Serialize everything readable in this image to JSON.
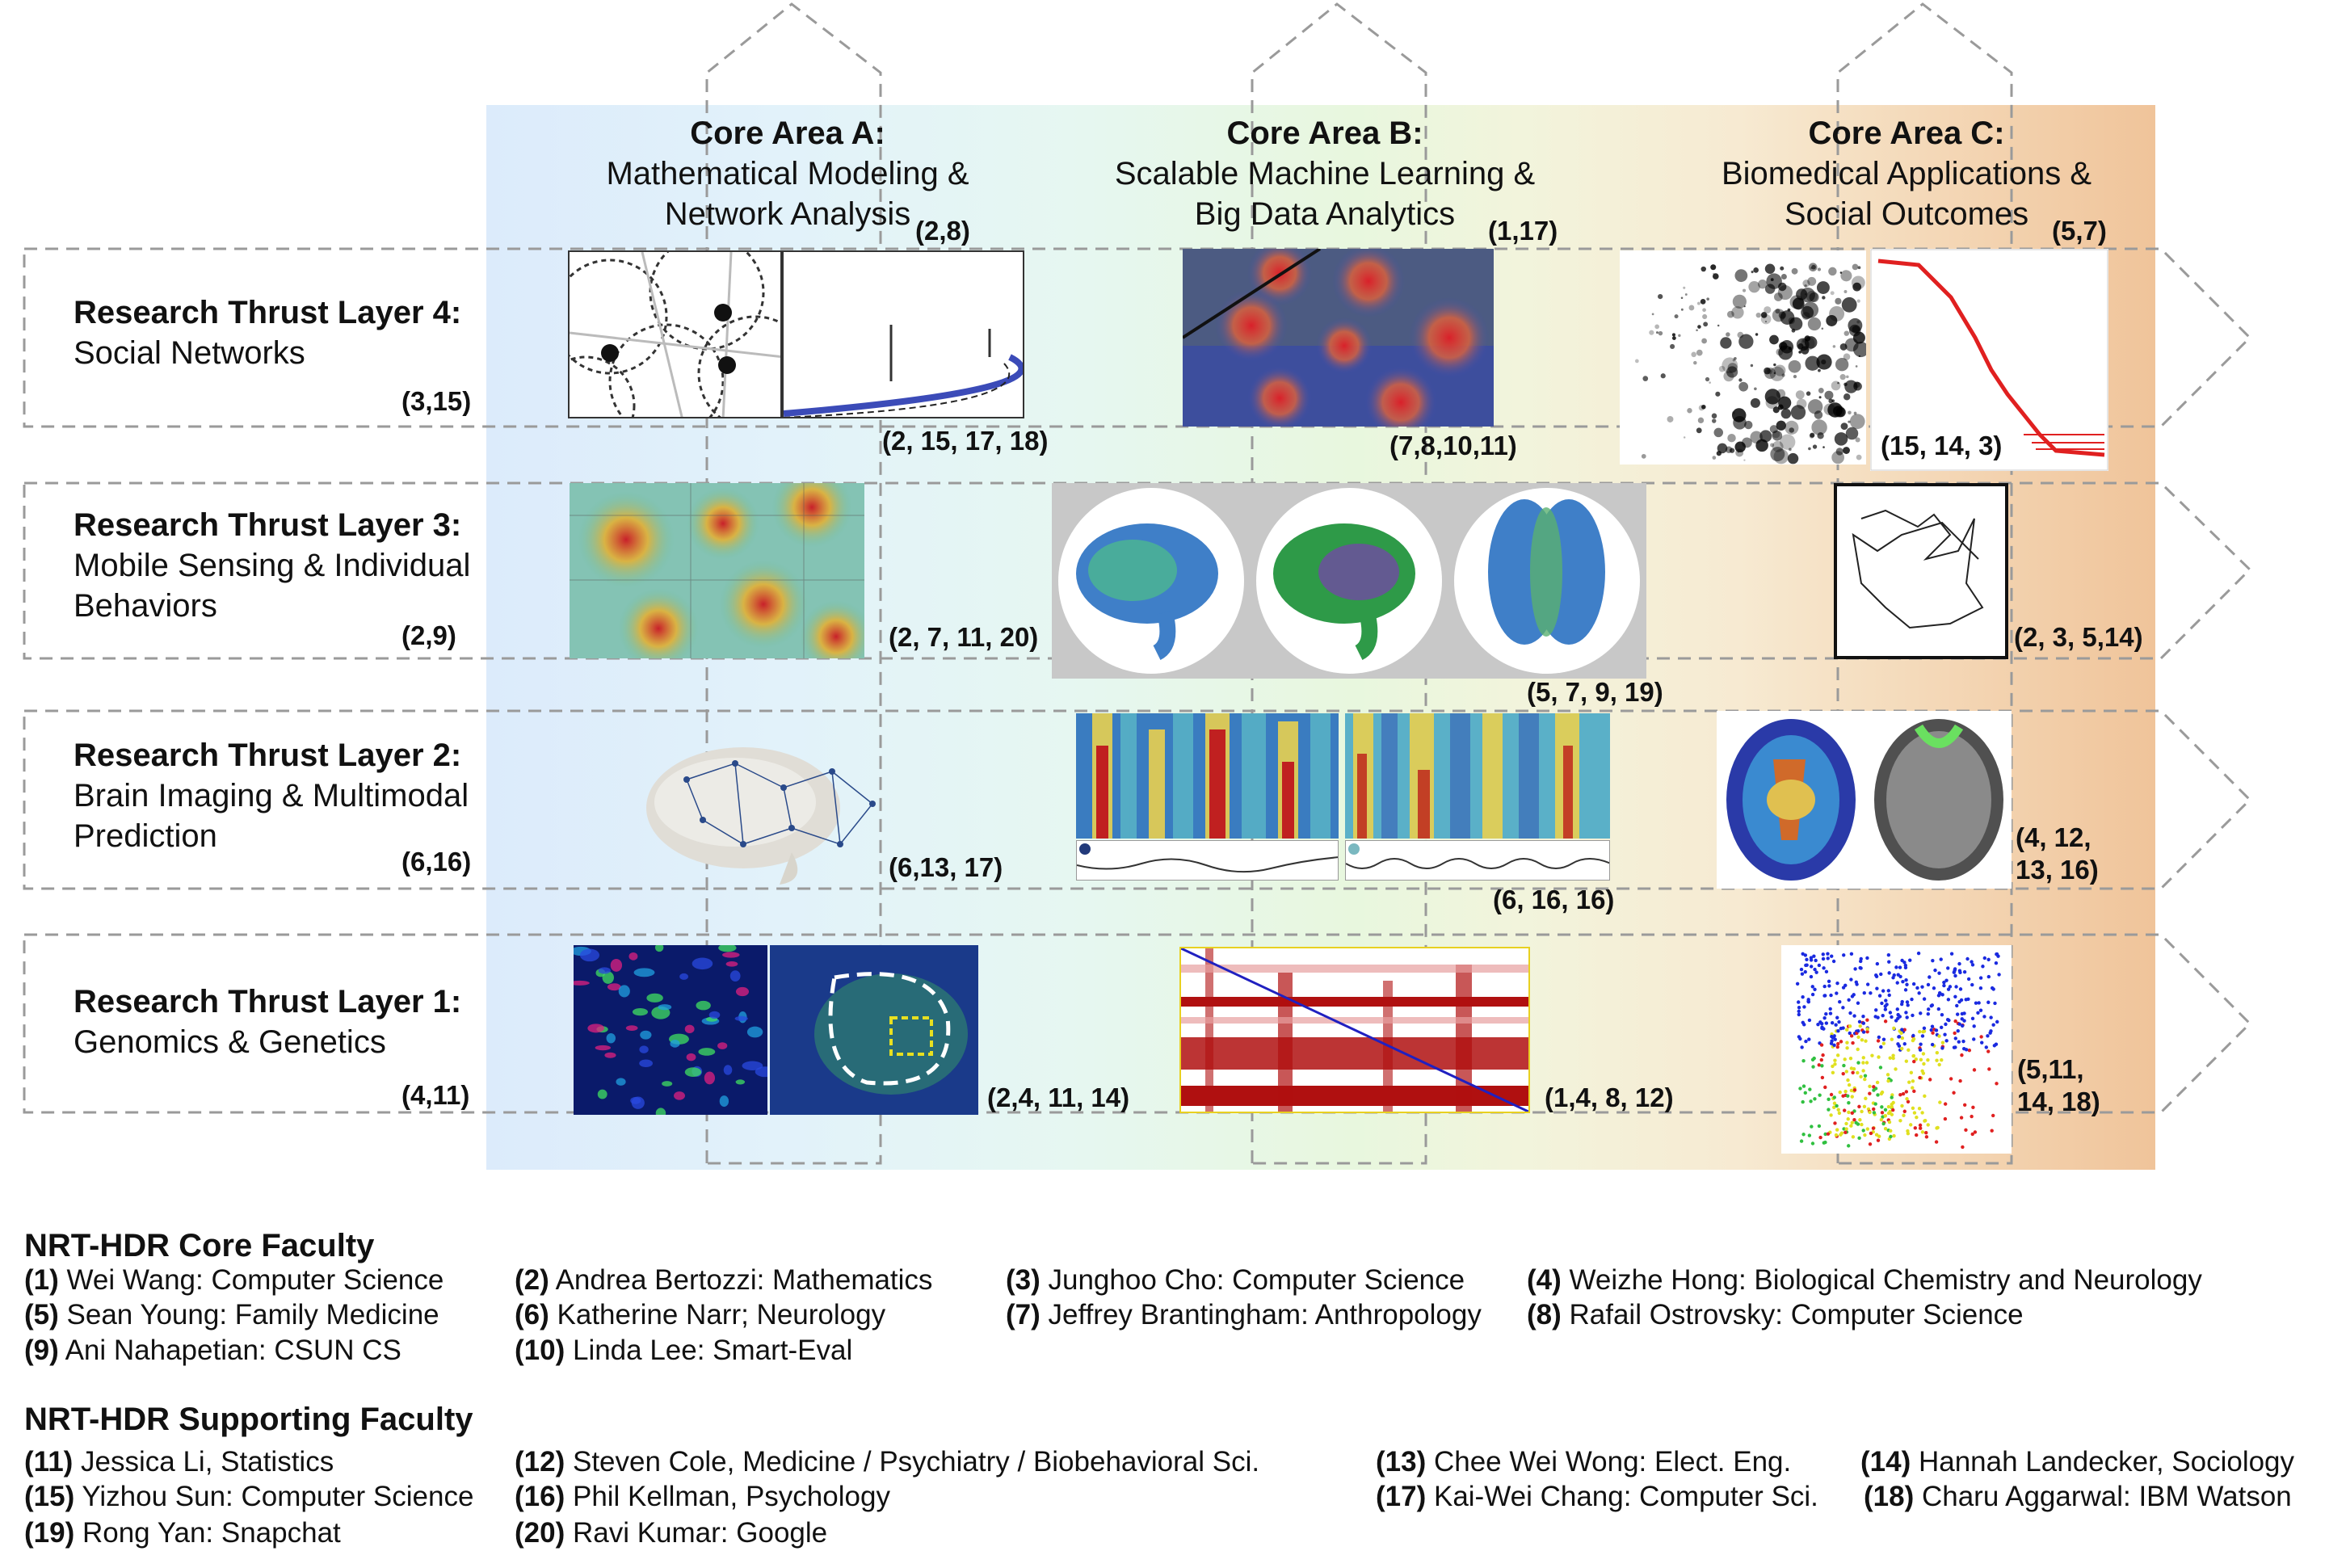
{
  "core_areas": [
    {
      "title": "Core Area A:",
      "line1": "Mathematical Modeling &",
      "line2": "Network Analysis",
      "cite": "(2,8)"
    },
    {
      "title": "Core Area B:",
      "line1": "Scalable Machine Learning &",
      "line2": "Big Data Analytics",
      "cite": "(1,17)"
    },
    {
      "title": "Core Area C:",
      "line1": "Biomedical Applications &",
      "line2": "Social Outcomes",
      "cite": "(5,7)"
    }
  ],
  "layers": [
    {
      "title": "Research Thrust Layer 4:",
      "line1": "Social Networks",
      "line2": "",
      "cite": "(3,15)"
    },
    {
      "title": "Research Thrust Layer 3:",
      "line1": "Mobile Sensing & Individual",
      "line2": "Behaviors",
      "cite": "(2,9)"
    },
    {
      "title": "Research Thrust Layer 2:",
      "line1": "Brain Imaging & Multimodal",
      "line2": "Prediction",
      "cite": "(6,16)"
    },
    {
      "title": "Research Thrust Layer 1:",
      "line1": "Genomics & Genetics",
      "line2": "",
      "cite": "(4,11)"
    }
  ],
  "image_cites": {
    "l4a": "(2, 15, 17, 18)",
    "l4b": "(7,8,10,11)",
    "l4c": "(15, 14, 3)",
    "l3a": "(2, 7, 11, 20)",
    "l3b": "(5, 7, 9, 19)",
    "l3c": "(2, 3, 5,14)",
    "l2a": "(6,13, 17)",
    "l2b": "(6, 16, 16)",
    "l2c1": "(4, 12,",
    "l2c2": "13, 16)",
    "l1a": "(2,4, 11, 14)",
    "l1b": "(1,4, 8, 12)",
    "l1c1": "(5,11,",
    "l1c2": "14, 18)"
  },
  "core_faculty": {
    "heading": "NRT-HDR Core Faculty",
    "members": [
      {
        "num": "(1)",
        "text": "Wei Wang: Computer Science"
      },
      {
        "num": "(2)",
        "text": "Andrea Bertozzi: Mathematics"
      },
      {
        "num": "(3)",
        "text": "Junghoo Cho: Computer Science"
      },
      {
        "num": "(4)",
        "text": "Weizhe Hong: Biological Chemistry and Neurology"
      },
      {
        "num": "(5)",
        "text": "Sean Young: Family Medicine"
      },
      {
        "num": "(6)",
        "text": "Katherine Narr; Neurology"
      },
      {
        "num": "(7)",
        "text": "Jeffrey Brantingham: Anthropology"
      },
      {
        "num": "(8)",
        "text": "Rafail  Ostrovsky: Computer Science"
      },
      {
        "num": "(9)",
        "text": "Ani Nahapetian: CSUN CS"
      },
      {
        "num": "(10)",
        "text": "Linda Lee: Smart-Eval"
      }
    ]
  },
  "supporting_faculty": {
    "heading": "NRT-HDR Supporting Faculty",
    "members": [
      {
        "num": "(11)",
        "text": "Jessica Li, Statistics"
      },
      {
        "num": "(12)",
        "text": "Steven Cole,  Medicine / Psychiatry / Biobehavioral Sci."
      },
      {
        "num": "(13)",
        "text": "Chee Wei Wong: Elect. Eng."
      },
      {
        "num": "(14)",
        "text": "Hannah Landecker, Sociology"
      },
      {
        "num": "(15)",
        "text": "Yizhou Sun: Computer Science"
      },
      {
        "num": "(16)",
        "text": "Phil Kellman, Psychology"
      },
      {
        "num": "(17)",
        "text": "Kai-Wei Chang: Computer Sci."
      },
      {
        "num": "(18)",
        "text": "Charu Aggarwal: IBM Watson"
      },
      {
        "num": "(19)",
        "text": "Rong Yan: Snapchat"
      },
      {
        "num": "(20)",
        "text": "Ravi Kumar: Google"
      }
    ]
  },
  "colors": {
    "band_left": "#dcebfb",
    "band_right": "#f0c49a",
    "dash": "#9a9a9a"
  }
}
